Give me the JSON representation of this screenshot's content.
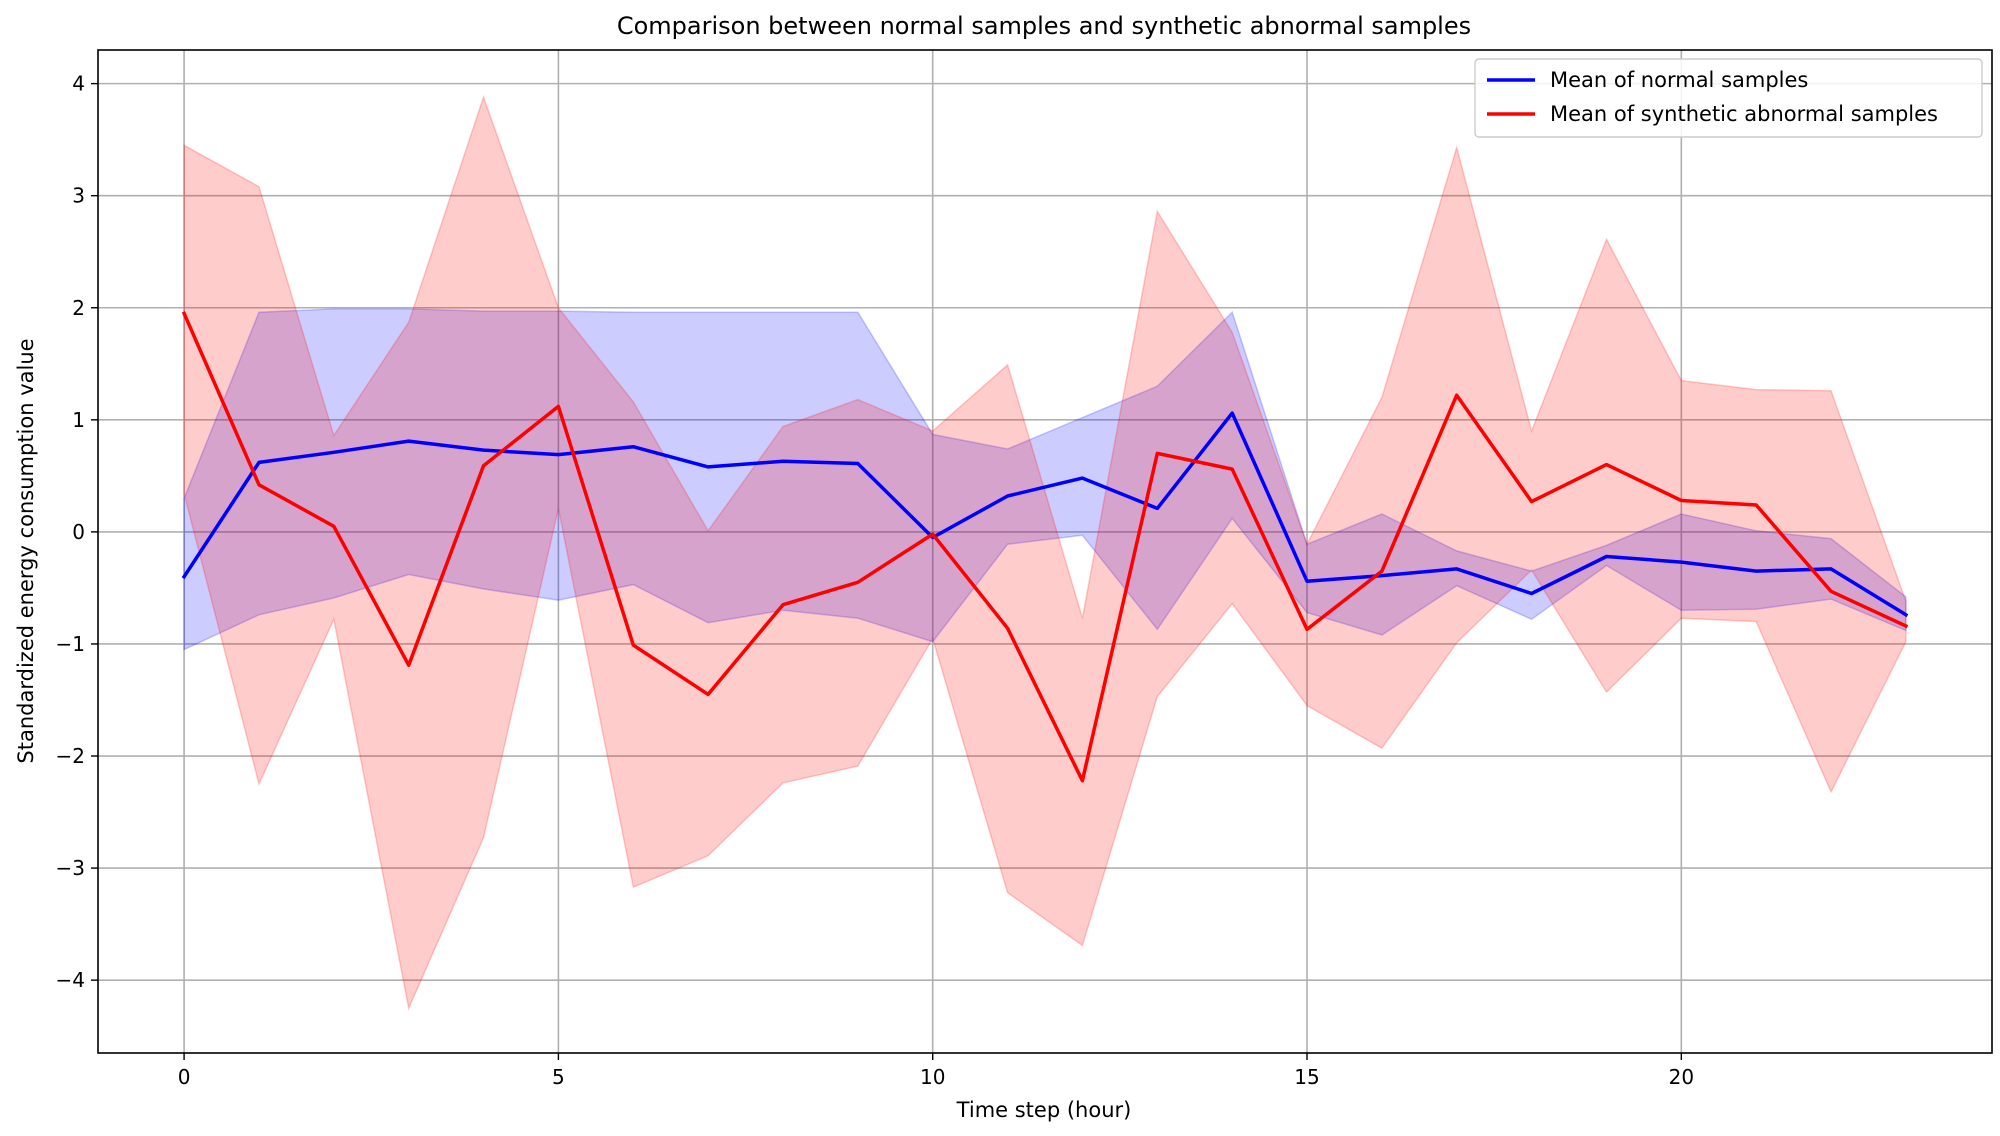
{
  "chart_data": {
    "type": "line",
    "title": "Comparison between normal samples and synthetic abnormal samples",
    "xlabel": "Time step (hour)",
    "ylabel": "Standardized energy consumption value",
    "xlim": [
      -1.15,
      24.15
    ],
    "ylim": [
      -4.65,
      4.3
    ],
    "xticks": [
      0,
      5,
      10,
      15,
      20
    ],
    "yticks": [
      -4,
      -3,
      -2,
      -1,
      0,
      1,
      2,
      3,
      4
    ],
    "xtick_labels": [
      "0",
      "5",
      "10",
      "15",
      "20"
    ],
    "ytick_labels": [
      "−4",
      "−3",
      "−2",
      "−1",
      "0",
      "1",
      "2",
      "3",
      "4"
    ],
    "grid": true,
    "legend_position": "upper right",
    "x": [
      0,
      1,
      2,
      3,
      4,
      5,
      6,
      7,
      8,
      9,
      10,
      11,
      12,
      13,
      14,
      15,
      16,
      17,
      18,
      19,
      20,
      21,
      22,
      23
    ],
    "series": [
      {
        "name": "Mean of normal samples",
        "color": "#0000ff",
        "band_color": "#0000ff",
        "values": [
          -0.4,
          0.62,
          0.71,
          0.81,
          0.73,
          0.69,
          0.76,
          0.58,
          0.63,
          0.61,
          -0.05,
          0.32,
          0.48,
          0.21,
          1.06,
          -0.44,
          -0.39,
          -0.33,
          -0.55,
          -0.22,
          -0.27,
          -0.35,
          -0.33,
          -0.74
        ],
        "band_upper": [
          0.3,
          1.96,
          1.99,
          1.99,
          1.97,
          1.97,
          1.96,
          1.96,
          1.96,
          1.96,
          0.87,
          0.74,
          1.02,
          1.3,
          1.96,
          -0.11,
          0.16,
          -0.17,
          -0.35,
          -0.12,
          0.16,
          0.01,
          -0.06,
          -0.58
        ],
        "band_lower": [
          -1.05,
          -0.74,
          -0.59,
          -0.38,
          -0.51,
          -0.61,
          -0.47,
          -0.81,
          -0.7,
          -0.77,
          -0.98,
          -0.11,
          -0.03,
          -0.87,
          0.12,
          -0.72,
          -0.92,
          -0.48,
          -0.78,
          -0.3,
          -0.7,
          -0.69,
          -0.6,
          -0.88
        ]
      },
      {
        "name": "Mean of synthetic abnormal samples",
        "color": "#ff0000",
        "band_color": "#ff0000",
        "values": [
          1.95,
          0.42,
          0.05,
          -1.19,
          0.59,
          1.12,
          -1.01,
          -1.45,
          -0.65,
          -0.45,
          -0.02,
          -0.86,
          -2.22,
          0.7,
          0.56,
          -0.87,
          -0.35,
          1.22,
          0.27,
          0.6,
          0.28,
          0.24,
          -0.53,
          -0.84
        ],
        "band_upper": [
          3.45,
          3.08,
          0.86,
          1.87,
          3.88,
          2.0,
          1.16,
          0.01,
          0.94,
          1.18,
          0.9,
          1.49,
          -0.77,
          2.86,
          1.78,
          -0.11,
          1.2,
          3.43,
          0.9,
          2.61,
          1.35,
          1.27,
          1.26,
          -0.62
        ],
        "band_lower": [
          0.34,
          -2.25,
          -0.78,
          -4.25,
          -2.73,
          0.21,
          -3.17,
          -2.89,
          -2.24,
          -2.09,
          -0.95,
          -3.22,
          -3.69,
          -1.47,
          -0.64,
          -1.55,
          -1.93,
          -0.99,
          -0.34,
          -1.43,
          -0.77,
          -0.8,
          -2.32,
          -0.98
        ]
      }
    ]
  }
}
